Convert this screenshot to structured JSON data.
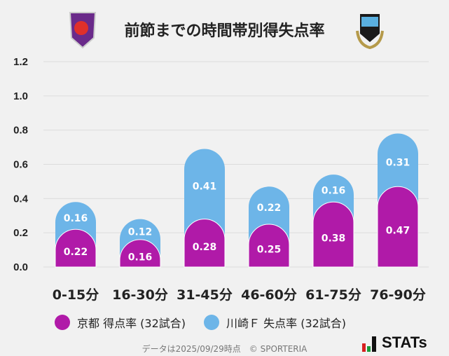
{
  "title": "前節までの時間帯別得失点率",
  "logos": {
    "left": "KYOTO SANGA",
    "right": "KAWASAKI FRONTALE"
  },
  "chart_data": {
    "type": "bar",
    "stacked": true,
    "categories": [
      "0-15分",
      "16-30分",
      "31-45分",
      "46-60分",
      "61-75分",
      "76-90分"
    ],
    "series": [
      {
        "name": "京都 得点率 (32試合)",
        "color": "#b01aa8",
        "values": [
          0.22,
          0.16,
          0.28,
          0.25,
          0.38,
          0.47
        ]
      },
      {
        "name": "川崎Ｆ 失点率 (32試合)",
        "color": "#6db5e8",
        "values": [
          0.16,
          0.12,
          0.41,
          0.22,
          0.16,
          0.31
        ]
      }
    ],
    "yticks": [
      "0.0",
      "0.2",
      "0.4",
      "0.6",
      "0.8",
      "1.0",
      "1.2"
    ],
    "ylim": [
      0,
      1.2
    ],
    "grid": true,
    "legend": "bottom"
  },
  "footer": "データは2025/09/29時点　© SPORTERIA",
  "brand": "STATs"
}
